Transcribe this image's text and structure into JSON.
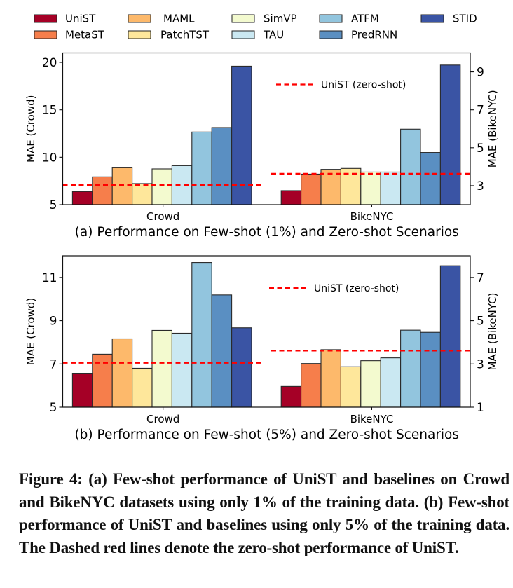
{
  "chart_data": [
    {
      "type": "bar",
      "panel": "a",
      "subtitle": "(a) Performance on Few-shot (1%) and Zero-shot Scenarios",
      "categories": [
        "Crowd",
        "BikeNYC"
      ],
      "ylabel_left": "MAE (Crowd)",
      "ylabel_right": "MAE (BikeNYC)",
      "ylim_left": [
        5,
        21
      ],
      "ylim_right": [
        2,
        10
      ],
      "yticks_left": [
        5,
        10,
        15,
        20
      ],
      "yticks_right": [
        3,
        5,
        7,
        9
      ],
      "series": [
        {
          "name": "UniST",
          "values": [
            6.38,
            2.74
          ]
        },
        {
          "name": "MetaST",
          "values": [
            7.93,
            3.61
          ]
        },
        {
          "name": "MAML",
          "values": [
            8.89,
            3.86
          ]
        },
        {
          "name": "PatchTST",
          "values": [
            7.22,
            3.91
          ]
        },
        {
          "name": "SimVP",
          "values": [
            8.77,
            3.72
          ]
        },
        {
          "name": "TAU",
          "values": [
            9.11,
            3.72
          ]
        },
        {
          "name": "ATFM",
          "values": [
            12.66,
            5.98
          ]
        },
        {
          "name": "PredRNN",
          "values": [
            13.13,
            4.75
          ]
        },
        {
          "name": "STID",
          "values": [
            19.6,
            9.36
          ]
        }
      ],
      "zero_shot": {
        "label": "UniST (zero-shot)",
        "values": [
          7.07,
          3.63
        ]
      },
      "legend_placement": "top-center-right",
      "grid": false
    },
    {
      "type": "bar",
      "panel": "b",
      "subtitle": "(b) Performance on Few-shot (5%) and Zero-shot Scenarios",
      "categories": [
        "Crowd",
        "BikeNYC"
      ],
      "ylabel_left": "MAE (Crowd)",
      "ylabel_right": "MAE (BikeNYC)",
      "ylim_left": [
        5,
        12
      ],
      "ylim_right": [
        1,
        8
      ],
      "yticks_left": [
        5,
        7,
        9,
        11
      ],
      "yticks_right": [
        1,
        3,
        5,
        7
      ],
      "series": [
        {
          "name": "UniST",
          "values": [
            6.57,
            1.96
          ]
        },
        {
          "name": "MetaST",
          "values": [
            7.45,
            3.02
          ]
        },
        {
          "name": "MAML",
          "values": [
            8.16,
            3.66
          ]
        },
        {
          "name": "PatchTST",
          "values": [
            6.8,
            2.87
          ]
        },
        {
          "name": "SimVP",
          "values": [
            8.55,
            3.15
          ]
        },
        {
          "name": "TAU",
          "values": [
            8.42,
            3.28
          ]
        },
        {
          "name": "ATFM",
          "values": [
            11.69,
            4.56
          ]
        },
        {
          "name": "PredRNN",
          "values": [
            10.19,
            4.46
          ]
        },
        {
          "name": "STID",
          "values": [
            8.67,
            7.54
          ]
        }
      ],
      "zero_shot": {
        "label": "UniST (zero-shot)",
        "values": [
          7.05,
          3.61
        ]
      },
      "legend_placement": "top-center-right",
      "grid": false
    }
  ],
  "legend": {
    "entries": [
      {
        "name": "UniST",
        "color": "#a50026"
      },
      {
        "name": "MetaST",
        "color": "#f67e4b"
      },
      {
        "name": "MAML",
        "color": "#fdb96b"
      },
      {
        "name": "PatchTST",
        "color": "#fee79b"
      },
      {
        "name": "SimVP",
        "color": "#f3facf"
      },
      {
        "name": "TAU",
        "color": "#cae8f2"
      },
      {
        "name": "ATFM",
        "color": "#92c5de"
      },
      {
        "name": "PredRNN",
        "color": "#5a8fc2"
      },
      {
        "name": "STID",
        "color": "#3a54a4"
      }
    ]
  },
  "colors": {
    "zero_shot_line": "#ff0000"
  },
  "caption": "Figure 4: (a) Few-shot performance of UniST and baselines on Crowd and BikeNYC datasets using only 1% of the training data. (b) Few-shot performance of UniST and baselines using only 5% of the training data. The Dashed red lines denote the zero-shot performance of UniST."
}
